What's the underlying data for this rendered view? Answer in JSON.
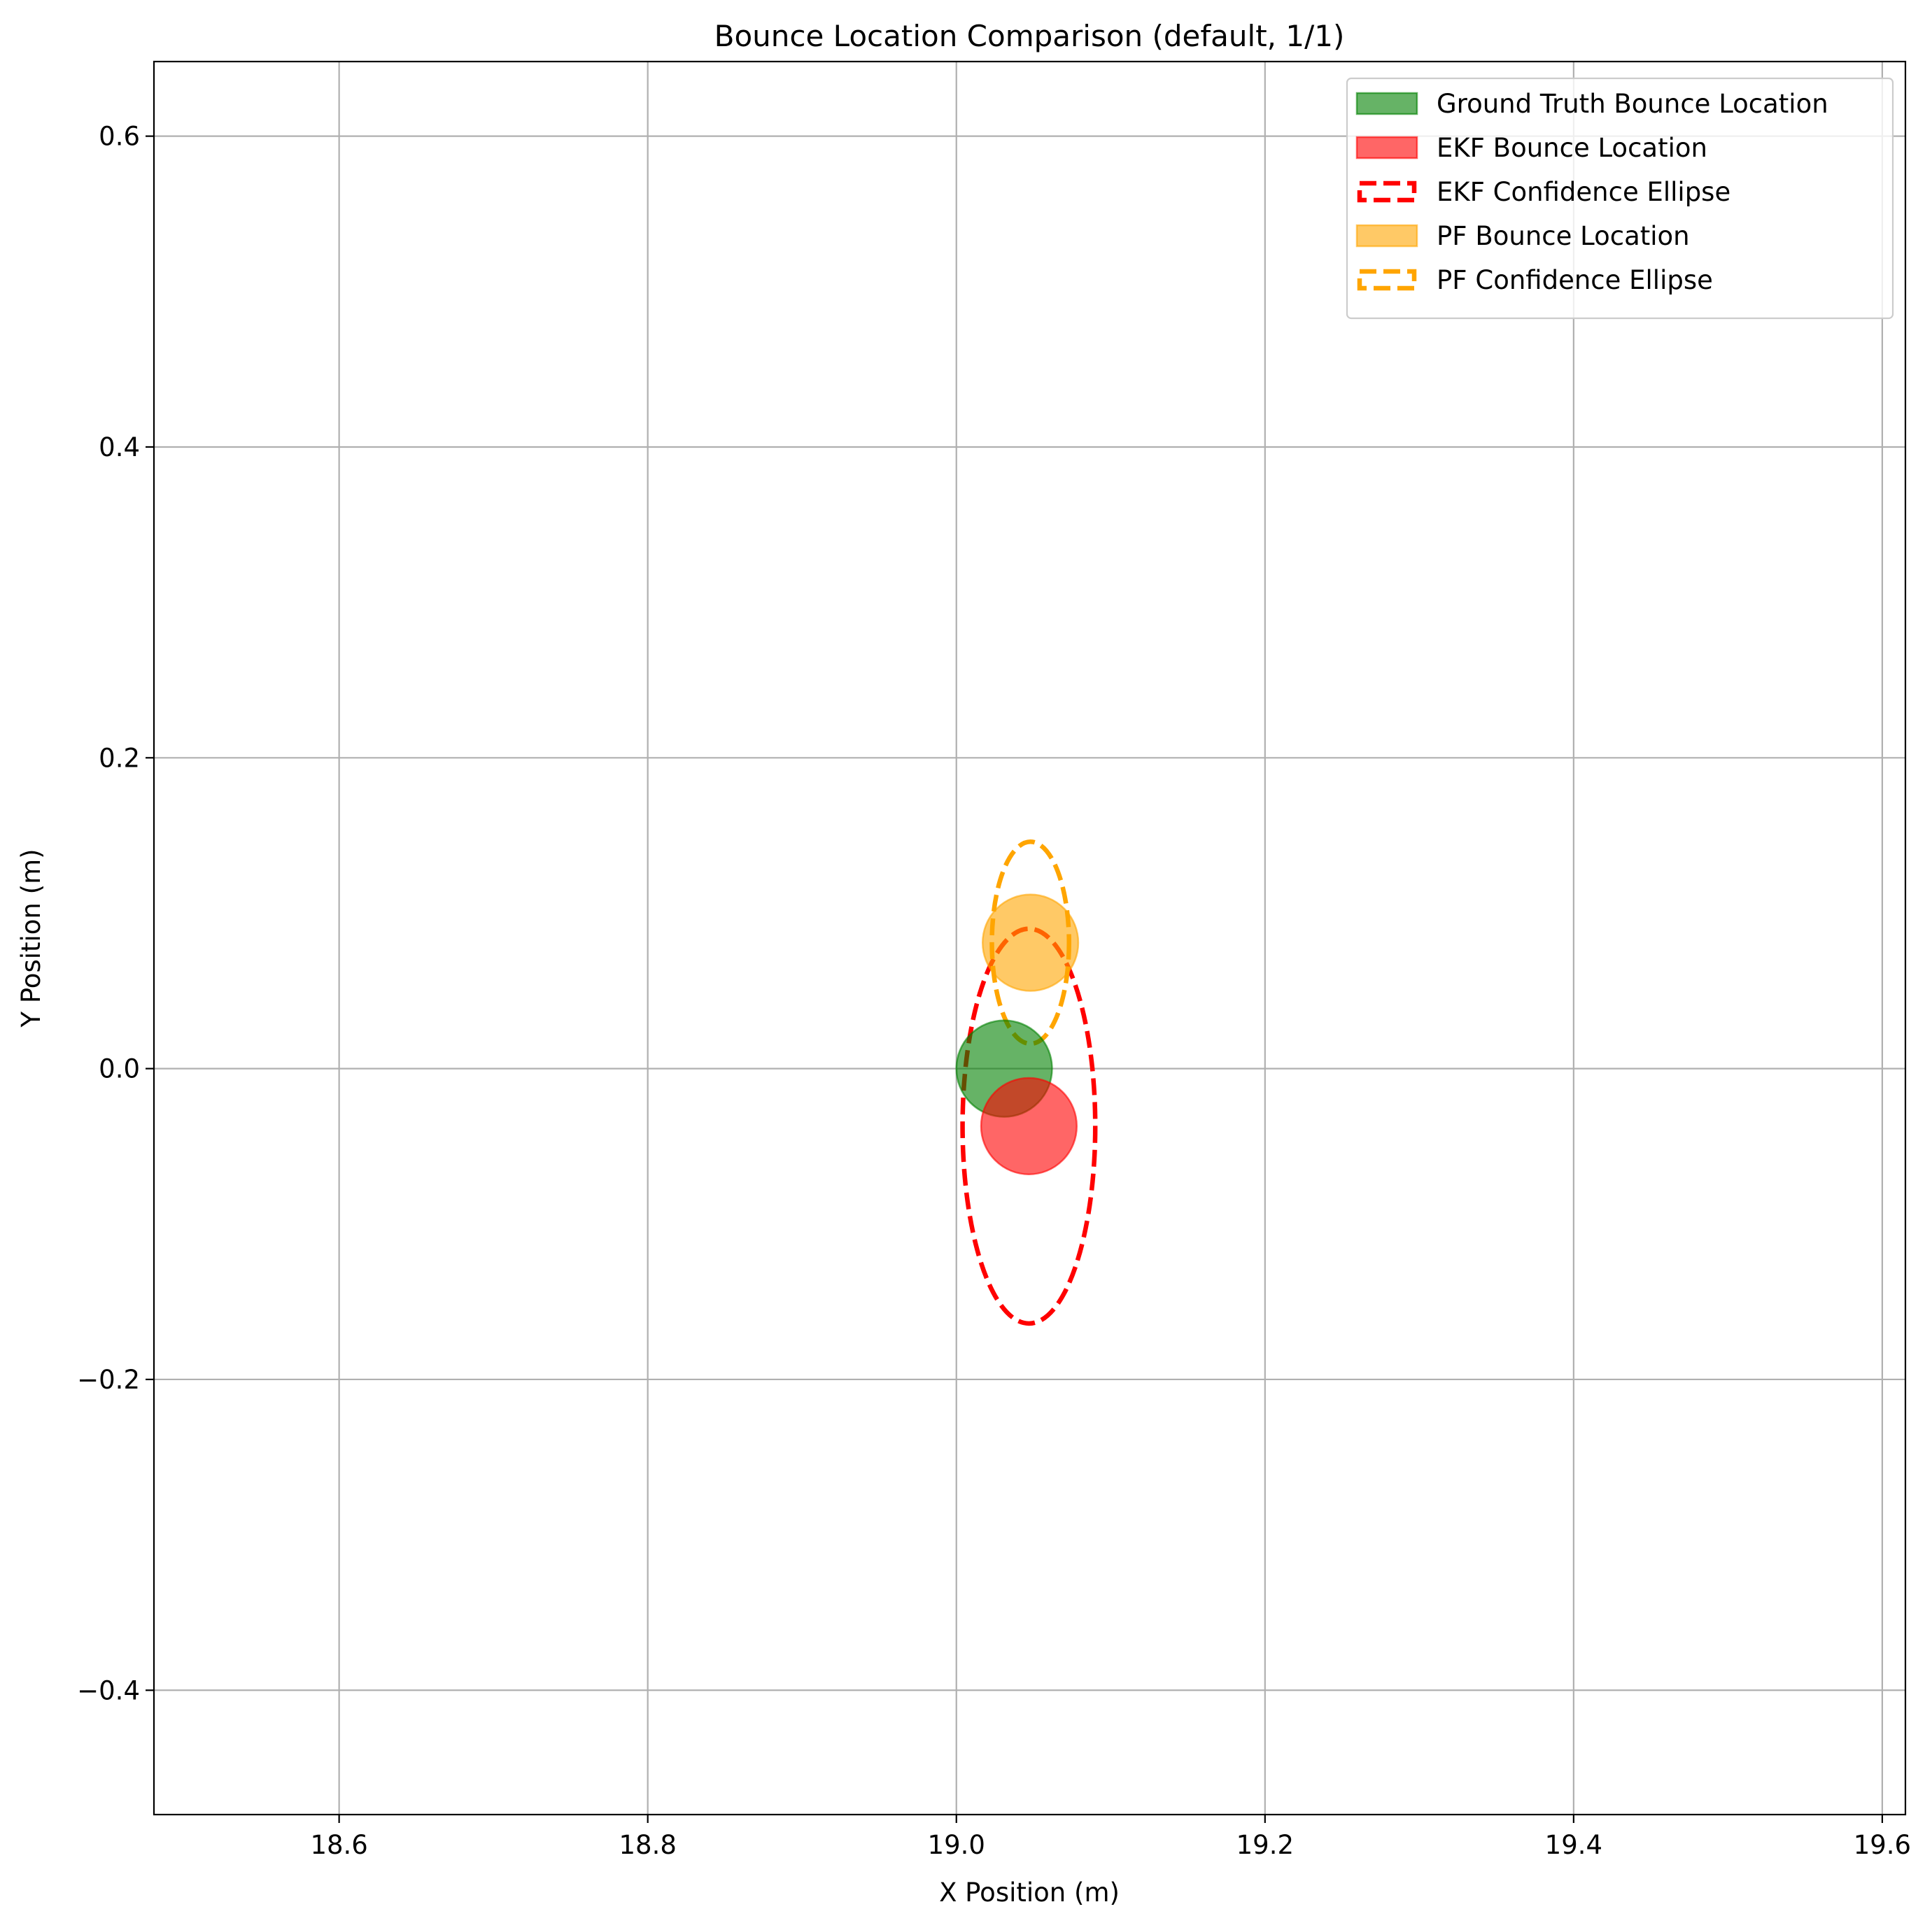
{
  "chart_data": {
    "type": "scatter",
    "title": "Bounce Location Comparison (default, 1/1)",
    "xlabel": "X Position (m)",
    "ylabel": "Y Position (m)",
    "xlim": [
      18.48,
      19.615
    ],
    "ylim": [
      -0.48,
      0.648
    ],
    "xticks": [
      18.6,
      18.8,
      19.0,
      19.2,
      19.4,
      19.6
    ],
    "xtick_labels": [
      "18.6",
      "18.8",
      "19.0",
      "19.2",
      "19.4",
      "19.6"
    ],
    "yticks": [
      -0.4,
      -0.2,
      0.0,
      0.2,
      0.4,
      0.6
    ],
    "ytick_labels": [
      "−0.4",
      "−0.2",
      "0.0",
      "0.2",
      "0.4",
      "0.6"
    ],
    "grid": true,
    "legend_position": "top-right",
    "series": [
      {
        "name": "Ground Truth Bounce Location",
        "kind": "marker",
        "x": 19.031,
        "y": 0.0,
        "radius": 0.031,
        "color": "#008000",
        "alpha": 0.6
      },
      {
        "name": "EKF Bounce Location",
        "kind": "marker",
        "x": 19.047,
        "y": -0.037,
        "radius": 0.031,
        "color": "#ff0000",
        "alpha": 0.6
      },
      {
        "name": "EKF Confidence Ellipse",
        "kind": "ellipse",
        "x": 19.047,
        "y": -0.037,
        "width": 0.086,
        "height": 0.254,
        "color": "#ff0000",
        "style": "dashed"
      },
      {
        "name": "PF Bounce Location",
        "kind": "marker",
        "x": 19.048,
        "y": 0.081,
        "radius": 0.031,
        "color": "#ffa500",
        "alpha": 0.6
      },
      {
        "name": "PF Confidence Ellipse",
        "kind": "ellipse",
        "x": 19.048,
        "y": 0.081,
        "width": 0.05,
        "height": 0.13,
        "color": "#ffa500",
        "style": "dashed"
      }
    ]
  }
}
